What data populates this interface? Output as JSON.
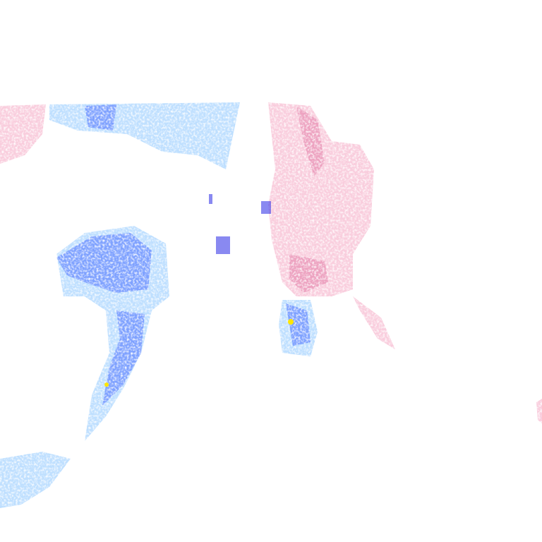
{
  "map": {
    "layer": "precipitation-radar",
    "colors": {
      "snow_light": "#a8d4ff",
      "snow_medium": "#6a8cff",
      "snow_heavy": "#3a3ae8",
      "snow_extreme": "#ffe600",
      "mix_light": "#f8c0d4",
      "mix_medium": "#e890b4",
      "mix_heavy": "#c04870",
      "background": "#ffffff"
    }
  }
}
